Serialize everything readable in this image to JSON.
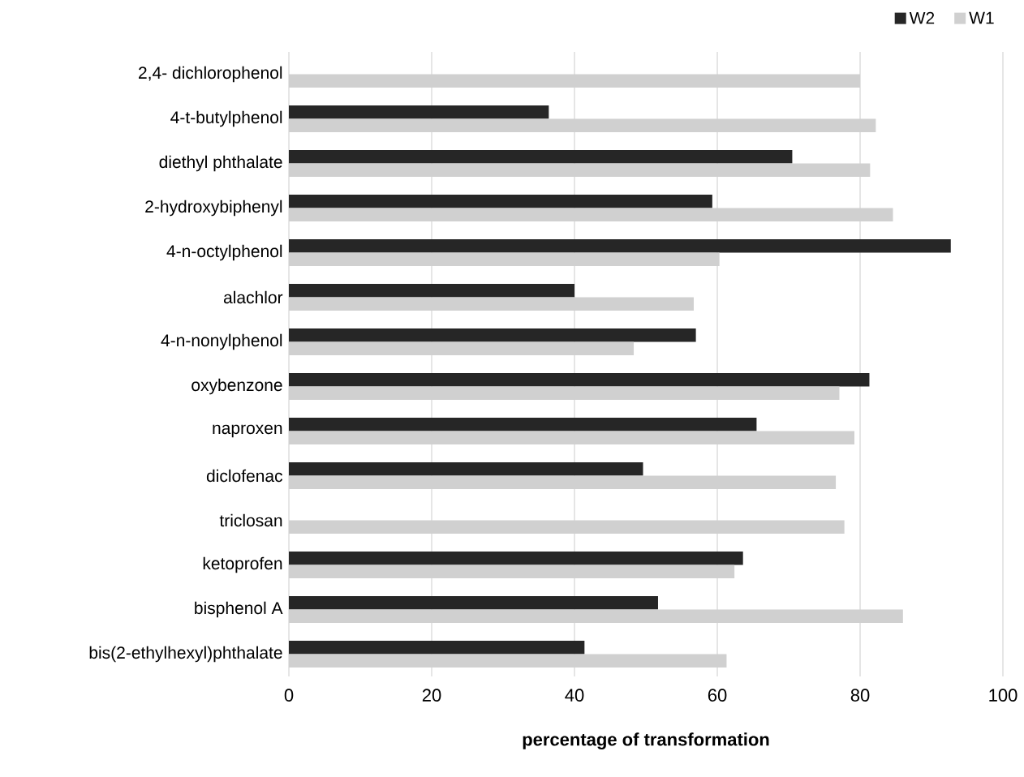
{
  "chart_data": {
    "type": "bar",
    "orientation": "horizontal",
    "xlabel": "percentage of transformation",
    "categories": [
      "2,4- dichlorophenol",
      "4-t-butylphenol",
      "diethyl phthalate",
      "2-hydroxybiphenyl",
      "4-n-octylphenol",
      "alachlor",
      "4-n-nonylphenol",
      "oxybenzone",
      "naproxen",
      "diclofenac",
      "triclosan",
      "ketoprofen",
      "bisphenol A",
      "bis(2-ethylhexyl)phthalate"
    ],
    "series": [
      {
        "name": "W2",
        "color": "#262626",
        "values": [
          null,
          36.4,
          70.5,
          59.3,
          92.7,
          40,
          57,
          81.3,
          65.5,
          49.6,
          null,
          63.6,
          51.7,
          41.4
        ]
      },
      {
        "name": "W1",
        "color": "#d0d0d0",
        "values": [
          80,
          82.2,
          81.4,
          84.6,
          60.3,
          56.7,
          48.3,
          77.1,
          79.2,
          76.6,
          77.8,
          62.4,
          86,
          61.3
        ]
      }
    ],
    "xlim": [
      0,
      100
    ],
    "xticks": [
      0,
      20,
      40,
      60,
      80,
      100
    ],
    "grid": "x",
    "legend": "top right"
  }
}
